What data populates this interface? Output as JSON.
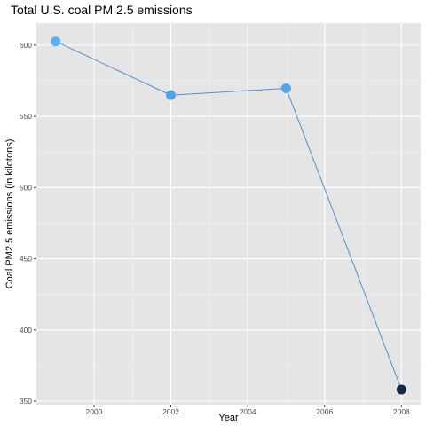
{
  "chart_data": {
    "type": "line",
    "title": "Total U.S. coal PM 2.5 emissions",
    "xlabel": "Year",
    "ylabel": "Coal PM2.5 emissions (in kilotons)",
    "x": [
      1999,
      2002,
      2005,
      2008
    ],
    "series": [
      {
        "values": [
          602.6,
          564.9,
          569.7,
          358.1
        ]
      }
    ],
    "xlim": [
      1998.5,
      2008.5
    ],
    "ylim": [
      347.5,
      615.5
    ],
    "xticks": [
      2000,
      2002,
      2004,
      2006,
      2008
    ],
    "yticks": [
      350,
      400,
      450,
      500,
      550,
      600
    ],
    "xtick_labels": [
      "2000",
      "2002",
      "2004",
      "2006",
      "2008"
    ],
    "ytick_labels": [
      "350",
      "400",
      "450",
      "500",
      "550",
      "600"
    ],
    "grid": true,
    "legend": "none",
    "colors": {
      "panel": "#e5e5e5",
      "grid_major": "#ffffff",
      "line": "#4a90d9",
      "point_scale": [
        "#132b43",
        "#56b1f7"
      ]
    }
  }
}
